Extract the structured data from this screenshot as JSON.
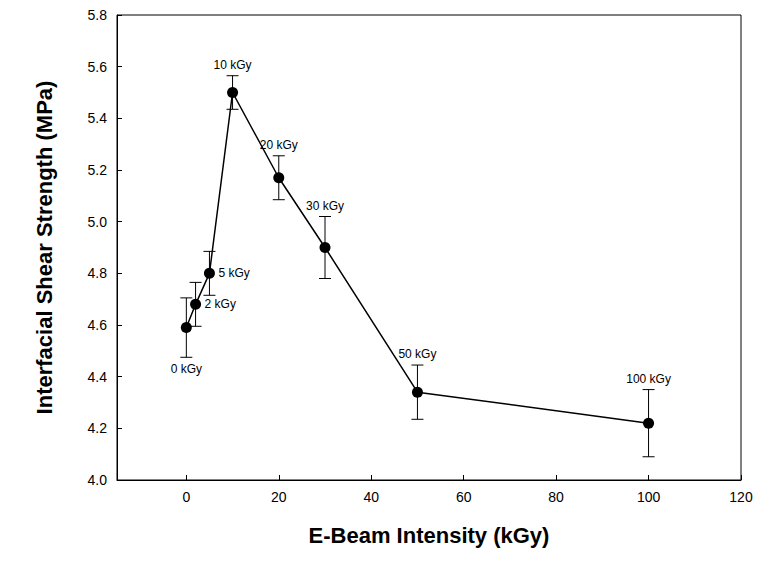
{
  "chart_data": {
    "type": "line",
    "x_label": "E-Beam Intensity (kGy)",
    "y_label": "Interfacial Shear Strength (MPa)",
    "x": [
      0,
      2,
      5,
      10,
      20,
      30,
      50,
      100
    ],
    "values": [
      4.59,
      4.68,
      4.8,
      5.5,
      5.17,
      4.9,
      4.34,
      4.22
    ],
    "errors": [
      0.115,
      0.085,
      0.085,
      0.065,
      0.085,
      0.12,
      0.105,
      0.13
    ],
    "annotations": [
      "0 kGy",
      "2 kGy",
      "5 kGy",
      "10 kGy",
      "20 kGy",
      "30 kGy",
      "50 kGy",
      "100 kGy"
    ],
    "color": "#000000",
    "marker": "circle",
    "line_style": "solid",
    "xlim": [
      -15,
      120
    ],
    "xticks": [
      0,
      20,
      40,
      60,
      80,
      100,
      120
    ],
    "ylim": [
      4.0,
      5.8
    ],
    "yticks": [
      {
        "value": 4.0,
        "label": "4.0"
      },
      4.2,
      4.4,
      4.6,
      4.8,
      {
        "value": 5.0,
        "label": "5.0"
      },
      5.2,
      5.4,
      5.6,
      5.8
    ],
    "grid": false
  }
}
